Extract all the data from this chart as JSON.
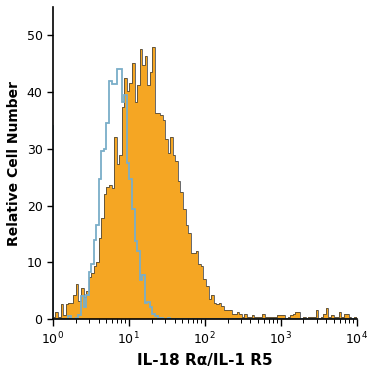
{
  "title": "",
  "xlabel": "IL-18 Rα/IL-1 R5",
  "ylabel": "Relative Cell Number",
  "xlim": [
    1,
    10000
  ],
  "ylim": [
    0,
    55
  ],
  "yticks": [
    0,
    10,
    20,
    30,
    40,
    50
  ],
  "blue_color": "#7aaec8",
  "orange_color": "#f5a623",
  "dark_outline_color": "#404040",
  "background_color": "#ffffff",
  "blue_peak_val": 44,
  "orange_peak_val": 48,
  "blue_log_mean": 0.83,
  "blue_log_std": 0.18,
  "orange_log_mean": 1.22,
  "orange_log_std": 0.38,
  "n_bins": 120,
  "blue_n": 2500,
  "orange_n": 4000,
  "seed": 77
}
